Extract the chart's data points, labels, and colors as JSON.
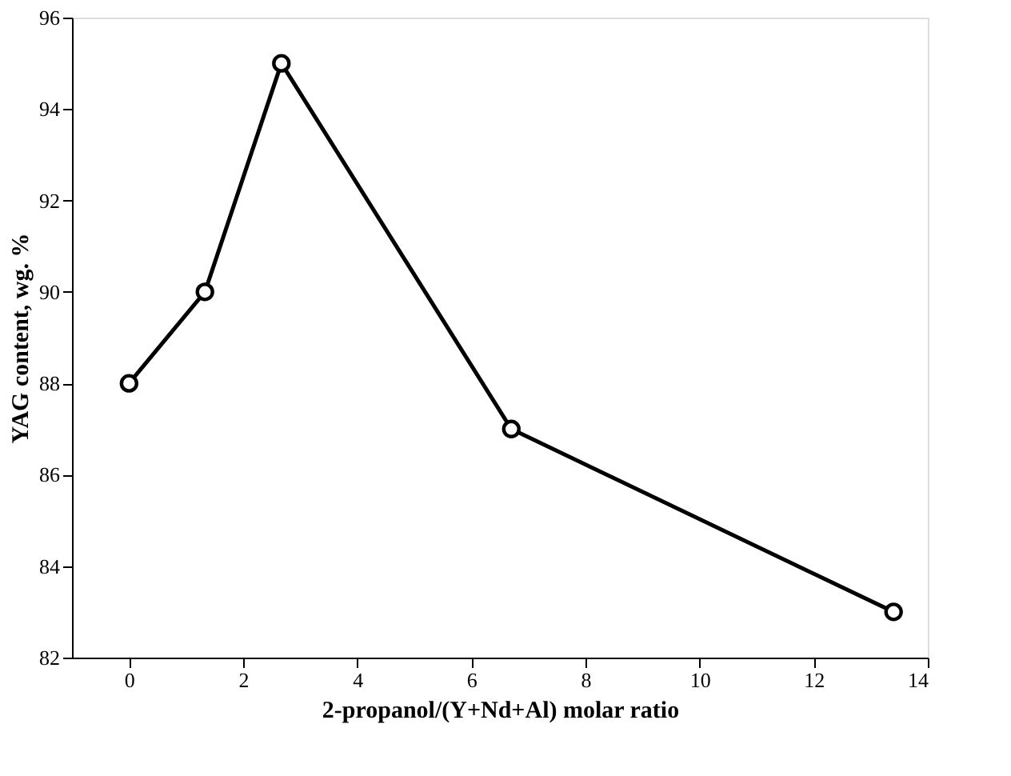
{
  "chart_data": {
    "type": "line",
    "xlabel": "2-propanol/(Y+Nd+Al) molar ratio",
    "ylabel": "YAG content, wg. %",
    "x": [
      0,
      1.33,
      2.67,
      6.7,
      13.4
    ],
    "series": [
      {
        "color": "#000000",
        "values": [
          88,
          90,
          95,
          87,
          83
        ]
      }
    ],
    "xlim": [
      -1,
      14
    ],
    "xticks": [
      0,
      2,
      4,
      6,
      8,
      10,
      12,
      14
    ],
    "ylim": [
      82,
      96
    ],
    "yticks": [
      82,
      84,
      86,
      88,
      90,
      92,
      94,
      96
    ],
    "grid": false,
    "legend": false,
    "marker": "circle",
    "line_style": "solid"
  }
}
